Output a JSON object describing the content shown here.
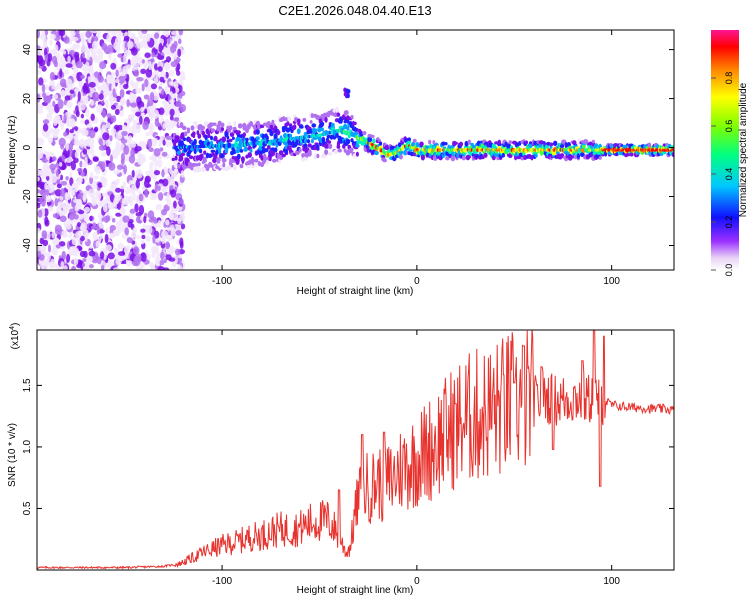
{
  "chart_data": [
    {
      "type": "heatmap",
      "title": "C2E1.2026.048.04.40.E13",
      "xlabel": "Height of straight line (km)",
      "ylabel": "Frequency (Hz)",
      "xlim": [
        -195,
        132
      ],
      "ylim": [
        -50,
        48
      ],
      "x_ticks": [
        -100,
        0,
        100
      ],
      "x_tick_labels": [
        "-100",
        "0",
        "100"
      ],
      "y_ticks": [
        -40,
        -20,
        0,
        20,
        40
      ],
      "y_tick_labels": [
        "-40",
        "-20",
        "0",
        "20",
        "40"
      ],
      "colorbar": {
        "label": "Normalized spectral amplitude",
        "range": [
          0,
          1
        ],
        "ticks": [
          0.0,
          0.2,
          0.4,
          0.6,
          0.8
        ],
        "tick_labels": [
          "0.0",
          "0.2",
          "0.4",
          "0.6",
          "0.8"
        ]
      },
      "signal_trace": {
        "x": [
          -125,
          -110,
          -90,
          -70,
          -50,
          -40,
          -35,
          -30,
          -25,
          -20,
          -15,
          -10,
          -5,
          0,
          20,
          40,
          60,
          80,
          95,
          132
        ],
        "y": [
          0,
          0.5,
          1,
          3,
          5,
          7,
          6,
          4,
          2,
          0,
          -3,
          -2,
          1,
          -1,
          -1,
          -1,
          -1,
          -1,
          -1,
          -1
        ],
        "noise_region_x": [
          -195,
          -120
        ]
      }
    },
    {
      "type": "line",
      "title": "",
      "xlabel": "Height of straight line (km)",
      "ylabel": "SNR (10 * v/v)",
      "scale_label": "(x10",
      "scale_exponent": "4",
      "scale_suffix": ")",
      "xlim": [
        -195,
        132
      ],
      "ylim": [
        0,
        1.95
      ],
      "x_ticks": [
        -100,
        0,
        100
      ],
      "x_tick_labels": [
        "-100",
        "0",
        "100"
      ],
      "y_ticks": [
        0.5,
        1.0,
        1.5
      ],
      "y_tick_labels": [
        "0.5",
        "1.0",
        "1.5"
      ],
      "series": [
        {
          "name": "SNR",
          "color": "#e8322d",
          "x": [
            -195,
            -150,
            -130,
            -122,
            -115,
            -110,
            -105,
            -100,
            -95,
            -90,
            -85,
            -80,
            -75,
            -70,
            -65,
            -60,
            -55,
            -50,
            -45,
            -42,
            -40,
            -38,
            -36,
            -34,
            -32,
            -30,
            -28,
            -26,
            -24,
            -22,
            -20,
            -18,
            -16,
            -14,
            -12,
            -10,
            -8,
            -6,
            -4,
            -2,
            0,
            5,
            10,
            15,
            20,
            25,
            30,
            35,
            40,
            45,
            50,
            55,
            60,
            62,
            65,
            70,
            75,
            80,
            85,
            88,
            90,
            92,
            94,
            96,
            100,
            105,
            110,
            115,
            120,
            125,
            132
          ],
          "y": [
            0.02,
            0.02,
            0.03,
            0.05,
            0.1,
            0.14,
            0.17,
            0.2,
            0.22,
            0.24,
            0.27,
            0.28,
            0.31,
            0.33,
            0.33,
            0.34,
            0.38,
            0.4,
            0.4,
            0.33,
            0.27,
            0.2,
            0.14,
            0.2,
            0.44,
            0.57,
            0.64,
            0.67,
            0.67,
            0.69,
            0.73,
            0.68,
            0.7,
            0.73,
            0.74,
            0.8,
            0.82,
            0.85,
            0.86,
            0.88,
            0.9,
            0.96,
            1.04,
            1.1,
            1.18,
            1.22,
            1.25,
            1.27,
            1.3,
            1.33,
            1.36,
            1.36,
            1.38,
            1.36,
            1.42,
            1.38,
            1.38,
            1.4,
            1.4,
            1.38,
            1.42,
            1.38,
            1.4,
            1.38,
            1.34,
            1.33,
            1.32,
            1.32,
            1.31,
            1.31,
            1.3
          ],
          "spikes": [
            {
              "x": -40,
              "y": 0.65
            },
            {
              "x": -28,
              "y": 1.1
            },
            {
              "x": -17,
              "y": 1.12
            },
            {
              "x": 20,
              "y": 1.35
            },
            {
              "x": 50,
              "y": 1.52
            },
            {
              "x": 55,
              "y": 1.82
            },
            {
              "x": 64,
              "y": 1.65
            },
            {
              "x": 70,
              "y": 0.98
            },
            {
              "x": 85,
              "y": 1.7
            },
            {
              "x": 91,
              "y": 1.95
            },
            {
              "x": 94,
              "y": 0.68
            },
            {
              "x": 96,
              "y": 1.9
            }
          ]
        }
      ]
    }
  ]
}
